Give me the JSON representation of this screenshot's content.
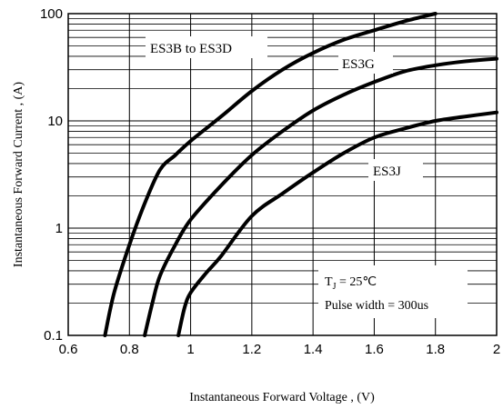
{
  "chart_data": {
    "type": "line",
    "xlabel": "Instantaneous Forward Voltage , (V)",
    "ylabel": "Instantaneous Forward Current , (A)",
    "xlim": [
      0.6,
      2.0
    ],
    "ylim": [
      0.1,
      100
    ],
    "yscale": "log",
    "grid": true,
    "x_ticks": [
      "0.6",
      "0.8",
      "1",
      "1.2",
      "1.4",
      "1.6",
      "1.8",
      "2"
    ],
    "y_ticks": [
      "0.1",
      "1",
      "10",
      "100"
    ],
    "series": [
      {
        "name": "ES3B to ES3D",
        "points": [
          [
            0.72,
            0.1
          ],
          [
            0.75,
            0.25
          ],
          [
            0.8,
            0.7
          ],
          [
            0.85,
            1.7
          ],
          [
            0.9,
            3.5
          ],
          [
            0.95,
            4.8
          ],
          [
            1.0,
            6.5
          ],
          [
            1.1,
            11
          ],
          [
            1.2,
            19
          ],
          [
            1.3,
            30
          ],
          [
            1.4,
            43
          ],
          [
            1.5,
            57
          ],
          [
            1.6,
            70
          ],
          [
            1.7,
            85
          ],
          [
            1.8,
            100
          ]
        ]
      },
      {
        "name": "ES3G",
        "points": [
          [
            0.85,
            0.1
          ],
          [
            0.875,
            0.2
          ],
          [
            0.9,
            0.36
          ],
          [
            0.95,
            0.7
          ],
          [
            1.0,
            1.2
          ],
          [
            1.1,
            2.5
          ],
          [
            1.2,
            4.8
          ],
          [
            1.3,
            8
          ],
          [
            1.4,
            12.5
          ],
          [
            1.5,
            17.5
          ],
          [
            1.6,
            23
          ],
          [
            1.7,
            29
          ],
          [
            1.8,
            33
          ],
          [
            1.9,
            36
          ],
          [
            2.0,
            38
          ]
        ]
      },
      {
        "name": "ES3J",
        "points": [
          [
            0.96,
            0.1
          ],
          [
            0.98,
            0.18
          ],
          [
            1.0,
            0.25
          ],
          [
            1.05,
            0.38
          ],
          [
            1.1,
            0.55
          ],
          [
            1.2,
            1.3
          ],
          [
            1.3,
            2.1
          ],
          [
            1.4,
            3.3
          ],
          [
            1.5,
            5.0
          ],
          [
            1.6,
            7.0
          ],
          [
            1.7,
            8.5
          ],
          [
            1.8,
            10
          ],
          [
            1.9,
            11
          ],
          [
            2.0,
            12
          ]
        ]
      }
    ],
    "series_labels": [
      "ES3B to ES3D",
      "ES3G",
      "ES3J"
    ],
    "annotation": {
      "line1_prefix": "T",
      "line1_sub": "J",
      "line1_suffix": " = 25℃",
      "line2": "Pulse width = 300us"
    }
  }
}
